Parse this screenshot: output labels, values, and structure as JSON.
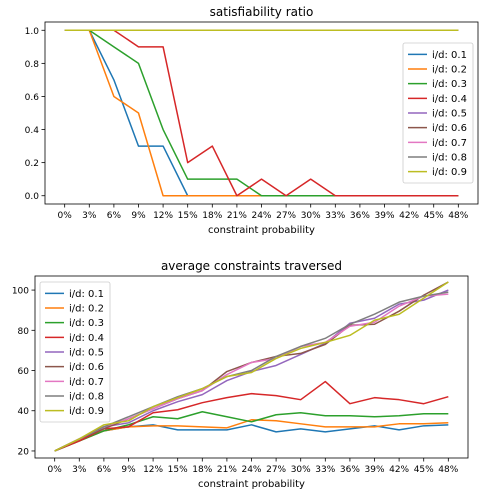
{
  "chart_data": [
    {
      "type": "line",
      "title": "satisfiability ratio",
      "xlabel": "constraint probability",
      "ylabel": "",
      "categories": [
        "0%",
        "3%",
        "6%",
        "9%",
        "12%",
        "15%",
        "18%",
        "21%",
        "24%",
        "27%",
        "30%",
        "33%",
        "36%",
        "39%",
        "42%",
        "45%",
        "48%"
      ],
      "ylim": [
        -0.05,
        1.05
      ],
      "yticks": [
        "0.0",
        "0.2",
        "0.4",
        "0.6",
        "0.8",
        "1.0"
      ],
      "legend_position": "right",
      "series": [
        {
          "name": "i/d: 0.1",
          "color": "#1f77b4",
          "values": [
            1.0,
            1.0,
            0.7,
            0.3,
            0.3,
            0.0,
            0.0,
            0.0,
            0.0,
            0.0,
            0.0,
            0.0,
            0.0,
            0.0,
            0.0,
            0.0,
            0.0
          ]
        },
        {
          "name": "i/d: 0.2",
          "color": "#ff7f0e",
          "values": [
            1.0,
            1.0,
            0.6,
            0.5,
            0.0,
            0.0,
            0.0,
            0.0,
            0.0,
            0.0,
            0.0,
            0.0,
            0.0,
            0.0,
            0.0,
            0.0,
            0.0
          ]
        },
        {
          "name": "i/d: 0.3",
          "color": "#2ca02c",
          "values": [
            1.0,
            1.0,
            0.9,
            0.8,
            0.4,
            0.1,
            0.1,
            0.1,
            0.0,
            0.0,
            0.0,
            0.0,
            0.0,
            0.0,
            0.0,
            0.0,
            0.0
          ]
        },
        {
          "name": "i/d: 0.4",
          "color": "#d62728",
          "values": [
            1.0,
            1.0,
            1.0,
            0.9,
            0.9,
            0.2,
            0.3,
            0.0,
            0.1,
            0.0,
            0.1,
            0.0,
            0.0,
            0.0,
            0.0,
            0.0,
            0.0
          ]
        },
        {
          "name": "i/d: 0.5",
          "color": "#9467bd",
          "values": [
            1.0,
            1.0,
            1.0,
            1.0,
            1.0,
            1.0,
            1.0,
            1.0,
            1.0,
            1.0,
            1.0,
            1.0,
            1.0,
            1.0,
            1.0,
            1.0,
            1.0
          ]
        },
        {
          "name": "i/d: 0.6",
          "color": "#8c564b",
          "values": [
            1.0,
            1.0,
            1.0,
            1.0,
            1.0,
            1.0,
            1.0,
            1.0,
            1.0,
            1.0,
            1.0,
            1.0,
            1.0,
            1.0,
            1.0,
            1.0,
            1.0
          ]
        },
        {
          "name": "i/d: 0.7",
          "color": "#e377c2",
          "values": [
            1.0,
            1.0,
            1.0,
            1.0,
            1.0,
            1.0,
            1.0,
            1.0,
            1.0,
            1.0,
            1.0,
            1.0,
            1.0,
            1.0,
            1.0,
            1.0,
            1.0
          ]
        },
        {
          "name": "i/d: 0.8",
          "color": "#7f7f7f",
          "values": [
            1.0,
            1.0,
            1.0,
            1.0,
            1.0,
            1.0,
            1.0,
            1.0,
            1.0,
            1.0,
            1.0,
            1.0,
            1.0,
            1.0,
            1.0,
            1.0,
            1.0
          ]
        },
        {
          "name": "i/d: 0.9",
          "color": "#bcbd22",
          "values": [
            1.0,
            1.0,
            1.0,
            1.0,
            1.0,
            1.0,
            1.0,
            1.0,
            1.0,
            1.0,
            1.0,
            1.0,
            1.0,
            1.0,
            1.0,
            1.0,
            1.0
          ]
        }
      ]
    },
    {
      "type": "line",
      "title": "average constraints traversed",
      "xlabel": "constraint probability",
      "ylabel": "",
      "categories": [
        "0%",
        "3%",
        "6%",
        "9%",
        "12%",
        "15%",
        "18%",
        "21%",
        "24%",
        "27%",
        "30%",
        "33%",
        "36%",
        "39%",
        "42%",
        "45%",
        "48%"
      ],
      "ylim": [
        16.5,
        107
      ],
      "yticks": [
        "20",
        "40",
        "60",
        "80",
        "100"
      ],
      "legend_position": "top-left",
      "series": [
        {
          "name": "i/d: 0.1",
          "color": "#1f77b4",
          "values": [
            20,
            25,
            30,
            32,
            33,
            30.5,
            30.5,
            30.5,
            33,
            29.5,
            31,
            29.5,
            31,
            32.5,
            30.5,
            32.5,
            33
          ]
        },
        {
          "name": "i/d: 0.2",
          "color": "#ff7f0e",
          "values": [
            20,
            25,
            30,
            32,
            32.5,
            32.5,
            32,
            31.5,
            35.5,
            35,
            33.5,
            32,
            32,
            32,
            33.5,
            33.5,
            34
          ]
        },
        {
          "name": "i/d: 0.3",
          "color": "#2ca02c",
          "values": [
            20,
            25,
            30,
            33,
            37,
            36,
            39.5,
            37,
            34.5,
            38,
            39,
            37.5,
            37.5,
            37,
            37.5,
            38.5,
            38.5
          ]
        },
        {
          "name": "i/d: 0.4",
          "color": "#d62728",
          "values": [
            20,
            25,
            31,
            32,
            39,
            40.5,
            44,
            46.5,
            48.5,
            47.5,
            45.5,
            54.5,
            43.5,
            46.5,
            45.5,
            43.5,
            47
          ]
        },
        {
          "name": "i/d: 0.5",
          "color": "#9467bd",
          "values": [
            20,
            26,
            32,
            34,
            40,
            44.5,
            48,
            55,
            59.5,
            62.5,
            68,
            73.5,
            83.5,
            86,
            93,
            95,
            100
          ]
        },
        {
          "name": "i/d: 0.6",
          "color": "#8c564b",
          "values": [
            20,
            26,
            31,
            36,
            41,
            46,
            50,
            59.5,
            64,
            67,
            68.5,
            73,
            82.5,
            83,
            89.5,
            97.5,
            104
          ]
        },
        {
          "name": "i/d: 0.7",
          "color": "#e377c2",
          "values": [
            20,
            26,
            32,
            36,
            41,
            46,
            50,
            58,
            64,
            66,
            72,
            74,
            82,
            84,
            92,
            97,
            98
          ]
        },
        {
          "name": "i/d: 0.8",
          "color": "#7f7f7f",
          "values": [
            20,
            26,
            32,
            37,
            42,
            47,
            51,
            57,
            60,
            67,
            72,
            76,
            83,
            88,
            94,
            97,
            99
          ]
        },
        {
          "name": "i/d: 0.9",
          "color": "#bcbd22",
          "values": [
            20,
            26,
            33,
            35,
            42,
            46.5,
            51,
            57,
            59,
            66,
            71,
            74,
            77.5,
            85,
            88,
            96,
            104
          ]
        }
      ]
    }
  ]
}
